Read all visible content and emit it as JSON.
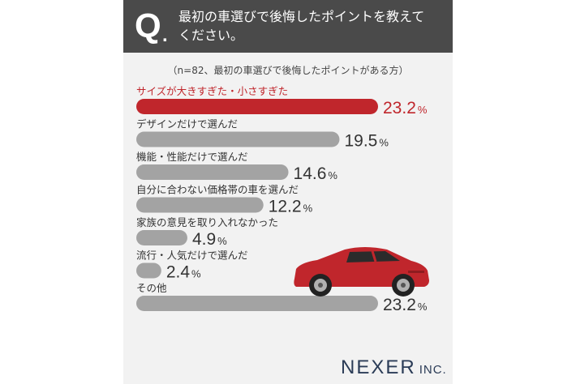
{
  "question": {
    "mark": "Q",
    "dot": ".",
    "line1": "最初の車選びで後悔したポイントを教えて",
    "line2": "ください。"
  },
  "note": "（n=82、最初の車選びで後悔したポイントがある方）",
  "chart_data": {
    "type": "bar",
    "orientation": "horizontal",
    "categories": [
      "サイズが大きすぎた・小さすぎた",
      "デザインだけで選んだ",
      "機能・性能だけで選んだ",
      "自分に合わない価格帯の車を選んだ",
      "家族の意見を取り入れなかった",
      "流行・人気だけで選んだ",
      "その他"
    ],
    "values": [
      23.2,
      19.5,
      14.6,
      12.2,
      4.9,
      2.4,
      23.2
    ],
    "unit": "%",
    "xlim": [
      0,
      23.2
    ],
    "highlight_index": 0,
    "colors": {
      "bar": "#a3a3a3",
      "highlight": "#c0262c",
      "label": "#333333"
    }
  },
  "car_color": "#c0262c",
  "logo": {
    "name": "NEXER",
    "suffix": "INC."
  }
}
